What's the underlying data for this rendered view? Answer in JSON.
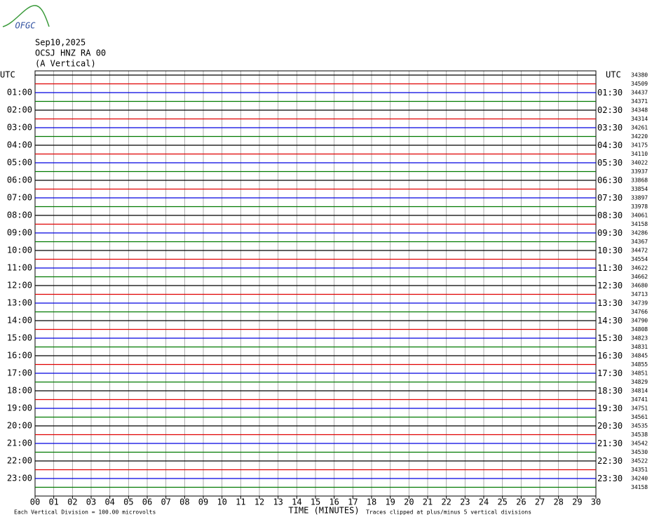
{
  "header": {
    "logo": "OFGC",
    "date": "Sep10,2025",
    "station": "OCSJ HNZ RA 00",
    "component": "(A Vertical)"
  },
  "left_axis": {
    "title": "UTC",
    "times": [
      "01:00",
      "02:00",
      "03:00",
      "04:00",
      "05:00",
      "06:00",
      "07:00",
      "08:00",
      "09:00",
      "10:00",
      "11:00",
      "12:00",
      "13:00",
      "14:00",
      "15:00",
      "16:00",
      "17:00",
      "18:00",
      "19:00",
      "20:00",
      "21:00",
      "22:00",
      "23:00"
    ]
  },
  "right_axis": {
    "title": "UTC",
    "times": [
      "01:30",
      "02:30",
      "03:30",
      "04:30",
      "05:30",
      "06:30",
      "07:30",
      "08:30",
      "09:30",
      "10:30",
      "11:30",
      "12:30",
      "13:30",
      "14:30",
      "15:30",
      "16:30",
      "17:30",
      "18:30",
      "19:30",
      "20:30",
      "21:30",
      "22:30",
      "23:30"
    ]
  },
  "trace_counts": [
    34380,
    34509,
    34437,
    34371,
    34348,
    34314,
    34261,
    34220,
    34175,
    34110,
    34022,
    33937,
    33868,
    33854,
    33897,
    33978,
    34061,
    34158,
    34286,
    34367,
    34472,
    34554,
    34622,
    34662,
    34680,
    34713,
    34739,
    34766,
    34790,
    34808,
    34823,
    34831,
    34845,
    34855,
    34851,
    34829,
    34814,
    34741,
    34751,
    34561,
    34535,
    34538,
    34542,
    34530,
    34522,
    34351,
    34240,
    34158
  ],
  "trace_colors": [
    "#000000",
    "#e00000",
    "#0000e0",
    "#007a00"
  ],
  "x_axis": {
    "ticks": [
      "00",
      "01",
      "02",
      "03",
      "04",
      "05",
      "06",
      "07",
      "08",
      "09",
      "10",
      "11",
      "12",
      "13",
      "14",
      "15",
      "16",
      "17",
      "18",
      "19",
      "20",
      "21",
      "22",
      "23",
      "24",
      "25",
      "26",
      "27",
      "28",
      "29",
      "30"
    ],
    "title": "TIME (MINUTES)"
  },
  "footer": {
    "scale": "Each Vertical Division =  100.00 microvolts",
    "clip": "Traces clipped at plus/minus 5 vertical divisions"
  }
}
